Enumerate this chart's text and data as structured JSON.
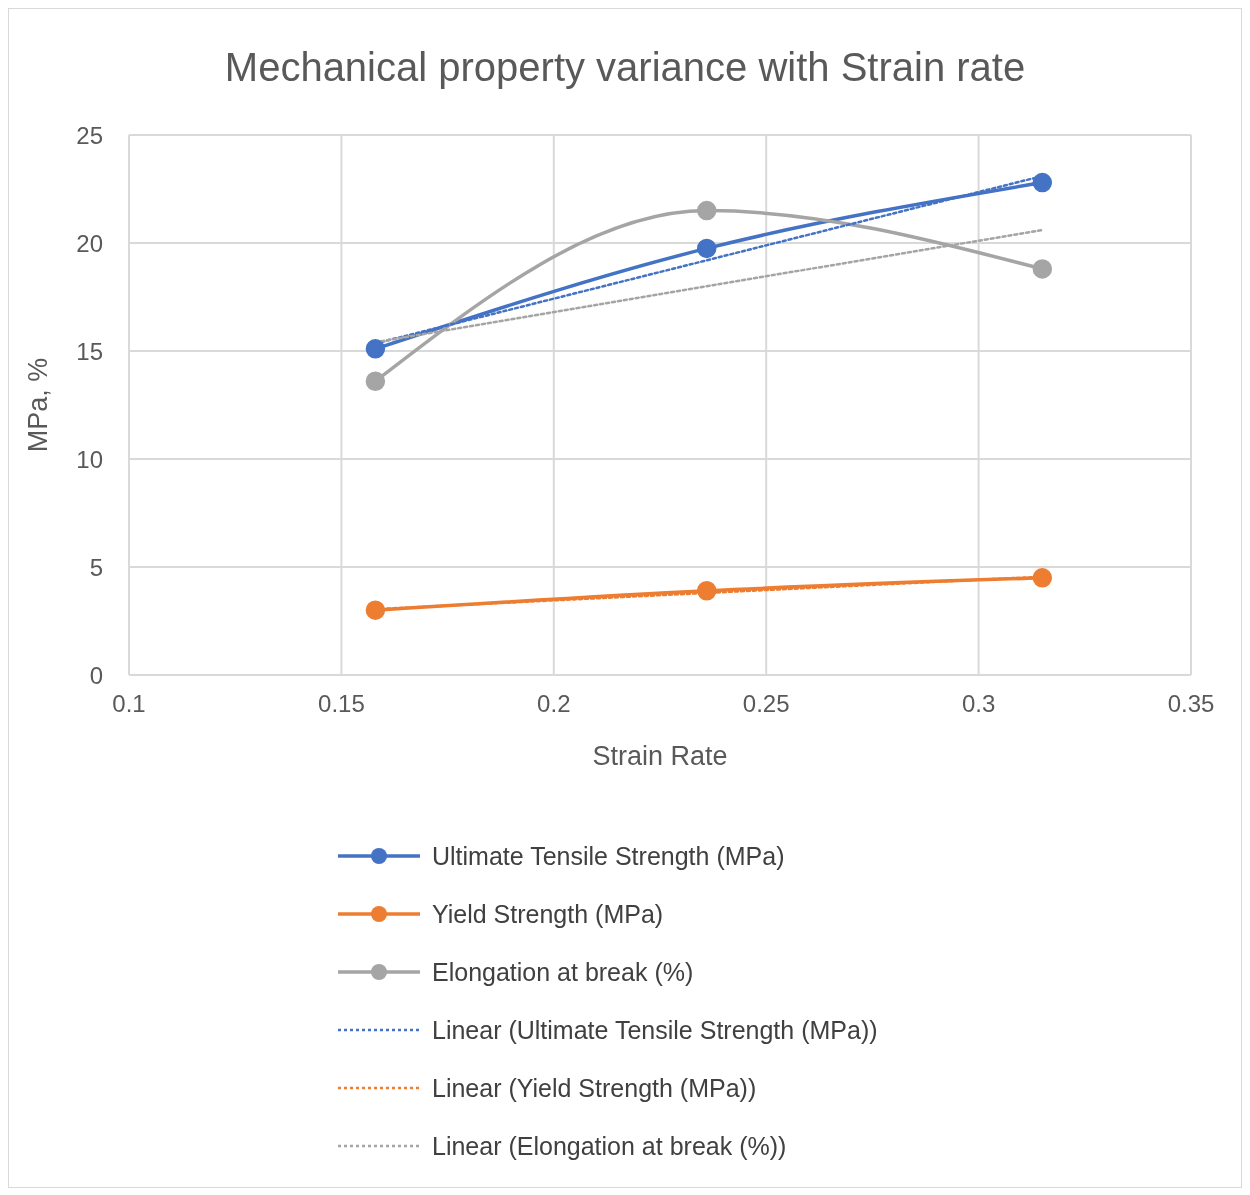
{
  "chart_data": {
    "type": "line",
    "title": "Mechanical property variance with Strain rate",
    "xlabel": "Strain Rate",
    "ylabel": "MPa, %",
    "xlim": [
      0.1,
      0.35
    ],
    "xticks": [
      0.1,
      0.15,
      0.2,
      0.25,
      0.3,
      0.35
    ],
    "ylim": [
      0,
      25
    ],
    "yticks": [
      0,
      5,
      10,
      15,
      20,
      25
    ],
    "grid": true,
    "legend": "bottom",
    "marker": "circle",
    "line_style": "solid",
    "x": [
      0.158,
      0.236,
      0.315
    ],
    "series": [
      {
        "name": "Ultimate Tensile Strength (MPa)",
        "color": "#4472c4",
        "values": [
          15.1,
          19.75,
          22.8
        ]
      },
      {
        "name": "Yield Strength (MPa)",
        "color": "#ed7d31",
        "values": [
          3.0,
          3.9,
          4.5
        ]
      },
      {
        "name": "Elongation at break (%)",
        "color": "#a5a5a5",
        "values": [
          13.6,
          21.5,
          18.8
        ]
      },
      {
        "name": "Linear (Ultimate Tensile Strength (MPa))",
        "color": "#4472c4",
        "type": "line",
        "line_style": "dotted",
        "marker": "none",
        "values": [
          15.35,
          19.2,
          23.1
        ]
      },
      {
        "name": "Linear (Yield Strength (MPa))",
        "color": "#ed7d31",
        "type": "line",
        "line_style": "dotted",
        "marker": "none",
        "values": [
          3.05,
          3.8,
          4.55
        ]
      },
      {
        "name": "Linear (Elongation at break (%))",
        "color": "#a5a5a5",
        "type": "line",
        "line_style": "dotted",
        "marker": "none",
        "values": [
          15.4,
          18.0,
          20.6
        ]
      }
    ]
  }
}
